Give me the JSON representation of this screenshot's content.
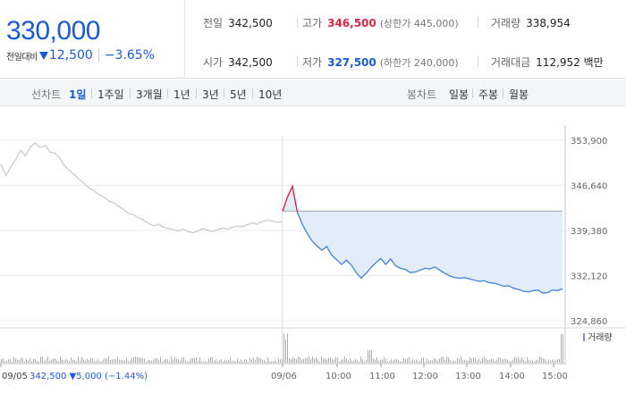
{
  "summary": {
    "price": "330,000",
    "change_label": "전일대비",
    "change_value": "12,500",
    "change_rate": "−3.65%",
    "prev_close": {
      "label": "전일",
      "value": "342,500"
    },
    "high": {
      "label": "고가",
      "value": "346,500",
      "sub": "(상한가 445,000)"
    },
    "volume": {
      "label": "거래량",
      "value": "338,954"
    },
    "open": {
      "label": "시가",
      "value": "342,500"
    },
    "low": {
      "label": "저가",
      "value": "327,500",
      "sub": "(하한가 240,000)"
    },
    "trade_amount": {
      "label": "거래대금",
      "value": "112,952 백만"
    }
  },
  "tabs": {
    "line_label": "선차트",
    "line_items": [
      "1일",
      "1주일",
      "3개월",
      "1년",
      "3년",
      "5년",
      "10년"
    ],
    "candle_label": "봉차트",
    "candle_items": [
      "일봉",
      "주봉",
      "월봉"
    ]
  },
  "chart_data": {
    "type": "line",
    "y_ticks": [
      "353,900",
      "346,640",
      "339,380",
      "332,120",
      "324,860"
    ],
    "ylim": [
      324860,
      353900
    ],
    "x_labels": [
      "09/05",
      "09/06",
      "10:00",
      "11:00",
      "12:00",
      "13:00",
      "14:00",
      "15:00"
    ],
    "prev_info": "342,500 ▼5,000 (−1.44%)",
    "legend": "거래량",
    "colors": {
      "prev": "#c8c8c8",
      "today": "#4a89dc",
      "fill": "#e3edf9",
      "up": "#e12343",
      "down": "#1a5ad9",
      "volume": "#9a86c8"
    },
    "series": [
      {
        "day": "09/05",
        "values": [
          350000,
          348200,
          349600,
          350800,
          352300,
          351400,
          352900,
          353500,
          352700,
          353100,
          352000,
          351800,
          351000,
          349700,
          349000,
          348300,
          347500,
          346900,
          346200,
          345700,
          345100,
          344700,
          344100,
          343800,
          343200,
          342700,
          342100,
          341900,
          341400,
          341000,
          340500,
          340100,
          340400,
          339900,
          339700,
          339500,
          339300,
          339600,
          339200,
          339000,
          339300,
          339700,
          339400,
          339200,
          339500,
          339800,
          339600,
          339900,
          340100,
          340000,
          340300,
          340600,
          340400,
          340800,
          341000,
          340900,
          340700,
          340800
        ]
      },
      {
        "day": "09/06",
        "values": [
          342500,
          344800,
          346500,
          342300,
          340400,
          338900,
          337700,
          336900,
          336200,
          336800,
          335400,
          334700,
          333900,
          334600,
          333800,
          332600,
          331700,
          332500,
          333400,
          334200,
          334900,
          333900,
          334800,
          333700,
          333300,
          333100,
          332600,
          332700,
          333000,
          333300,
          333200,
          333500,
          333000,
          332500,
          332100,
          331800,
          331700,
          331800,
          331600,
          331400,
          331200,
          331300,
          331000,
          330900,
          330700,
          330400,
          330500,
          330100,
          329900,
          329600,
          329500,
          329700,
          329800,
          329300,
          329400,
          329800,
          329700,
          330000
        ]
      }
    ],
    "ref_price": 342500
  }
}
